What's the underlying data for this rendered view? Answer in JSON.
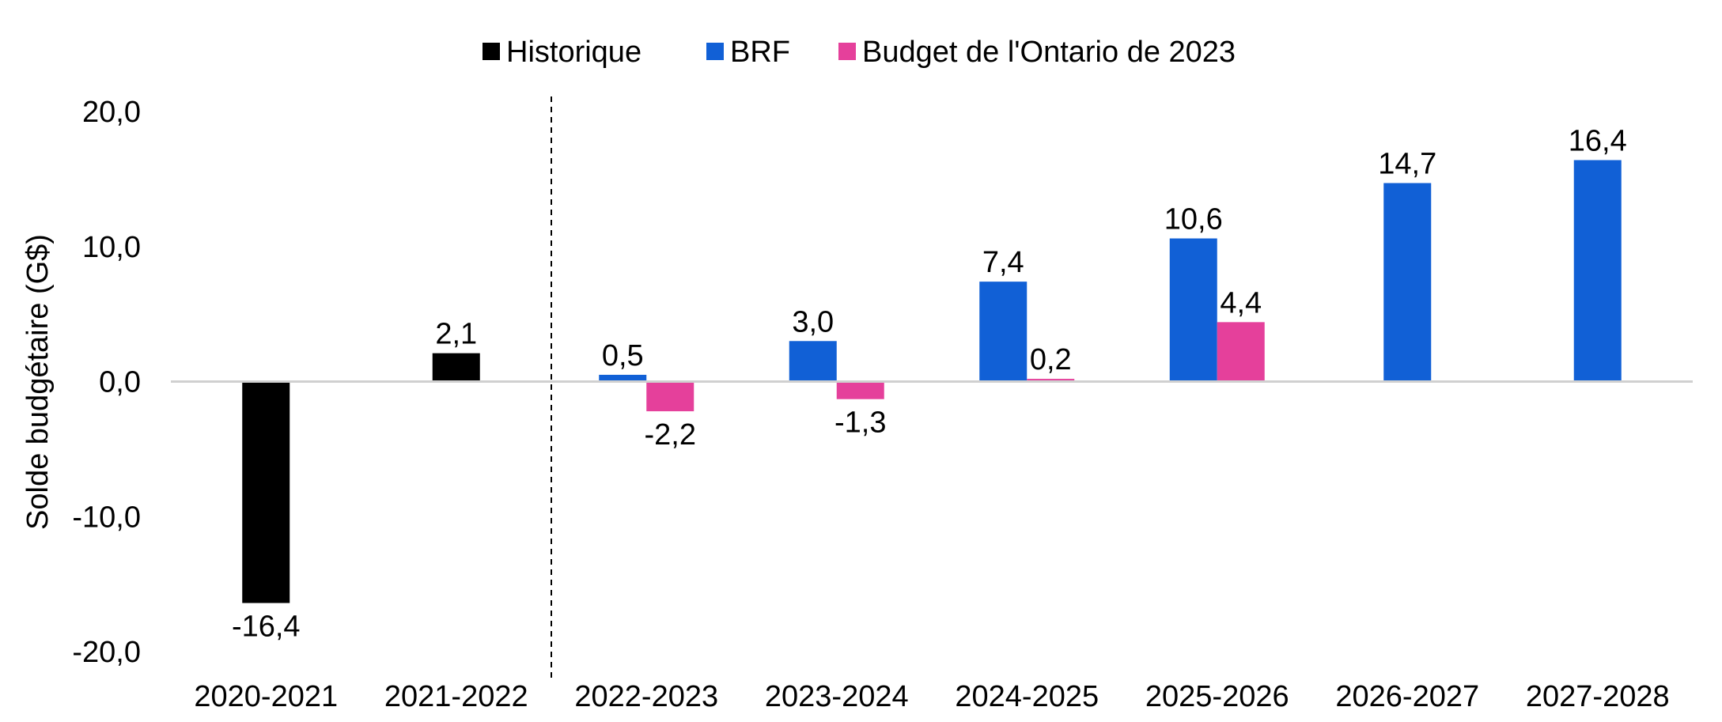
{
  "chart_data": {
    "type": "bar",
    "categories": [
      "2020-2021",
      "2021-2022",
      "2022-2023",
      "2023-2024",
      "2024-2025",
      "2025-2026",
      "2026-2027",
      "2027-2028"
    ],
    "series": [
      {
        "name": "Historique",
        "color": "#000000",
        "values": [
          -16.4,
          2.1,
          null,
          null,
          null,
          null,
          null,
          null
        ],
        "labels": [
          "-16,4",
          "2,1",
          "",
          "",
          "",
          "",
          "",
          ""
        ]
      },
      {
        "name": "BRF",
        "color": "#1160d6",
        "values": [
          null,
          null,
          0.5,
          3.0,
          7.4,
          10.6,
          14.7,
          16.4
        ],
        "labels": [
          "",
          "",
          "0,5",
          "3,0",
          "7,4",
          "10,6",
          "14,7",
          "16,4"
        ]
      },
      {
        "name": "Budget de l'Ontario de 2023",
        "color": "#e5409b",
        "values": [
          null,
          null,
          -2.2,
          -1.3,
          0.2,
          4.4,
          null,
          null
        ],
        "labels": [
          "",
          "",
          "-2,2",
          "-1,3",
          "0,2",
          "4,4",
          "",
          ""
        ]
      }
    ],
    "ylabel": "Solde budgétaire (G$)",
    "xlabel": "",
    "ylim": [
      -20,
      20
    ],
    "yticks": [
      20,
      10,
      0,
      -10,
      -20
    ],
    "ytick_labels": [
      "20,0",
      "10,0",
      "0,0",
      "-10,0",
      "-20,0"
    ],
    "divider_after_category": "2021-2022",
    "legend_position": "top-center",
    "grid": false
  }
}
